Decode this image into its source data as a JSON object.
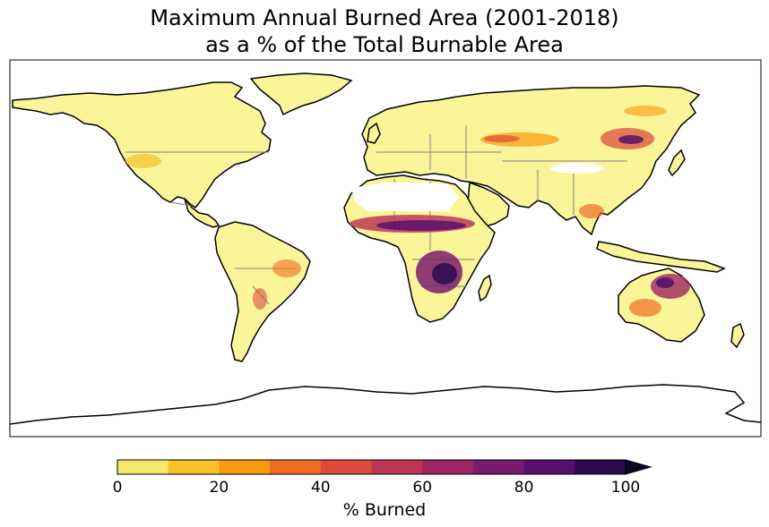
{
  "title": {
    "line1": "Maximum Annual Burned Area (2001-2018)",
    "line2": "as a % of the Total Burnable Area"
  },
  "colorbar": {
    "label": "% Burned",
    "ticks": [
      "0",
      "20",
      "40",
      "60",
      "80",
      "100"
    ],
    "range": [
      0,
      100
    ],
    "extend": "max",
    "colors": [
      "#f3e96b",
      "#f8c12b",
      "#fb9a0c",
      "#f06c22",
      "#dc4c3c",
      "#bd3654",
      "#9b2660",
      "#791c6d",
      "#56106e",
      "#2a0c4e"
    ],
    "extend_color": "#0c0826"
  },
  "map": {
    "projection": "plate-carree",
    "land_base_color": "#fbf59a",
    "ocean_color": "#ffffff",
    "coastline_color": "#000000",
    "border_color": "#808080"
  }
}
